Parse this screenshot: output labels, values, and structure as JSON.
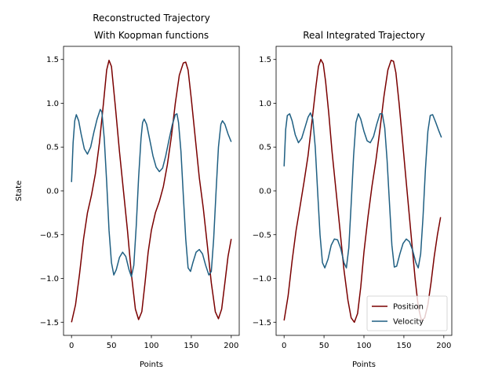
{
  "chart_data": [
    {
      "type": "line",
      "title_lines": [
        "Reconstructed Trajectory",
        "With Koopman functions"
      ],
      "xlabel": "Points",
      "ylabel": "State",
      "xlim": [
        -10,
        210
      ],
      "ylim": [
        -1.65,
        1.65
      ],
      "xticks": [
        0,
        50,
        100,
        150,
        200
      ],
      "yticks": [
        -1.5,
        -1.0,
        -0.5,
        0.0,
        0.5,
        1.0,
        1.5
      ],
      "ytick_labels": [
        "−1.5",
        "−1.0",
        "−0.5",
        "0.0",
        "0.5",
        "1.0",
        "1.5"
      ],
      "legend": null,
      "series": [
        {
          "name": "Position",
          "color": "#7a0000",
          "points": [
            [
              0,
              -1.5
            ],
            [
              5,
              -1.3
            ],
            [
              10,
              -0.95
            ],
            [
              15,
              -0.55
            ],
            [
              20,
              -0.25
            ],
            [
              25,
              -0.05
            ],
            [
              30,
              0.2
            ],
            [
              35,
              0.55
            ],
            [
              40,
              1.0
            ],
            [
              44,
              1.38
            ],
            [
              47,
              1.49
            ],
            [
              50,
              1.42
            ],
            [
              55,
              0.95
            ],
            [
              60,
              0.45
            ],
            [
              65,
              0.0
            ],
            [
              70,
              -0.45
            ],
            [
              75,
              -0.95
            ],
            [
              80,
              -1.35
            ],
            [
              84,
              -1.47
            ],
            [
              88,
              -1.38
            ],
            [
              92,
              -1.05
            ],
            [
              96,
              -0.7
            ],
            [
              100,
              -0.45
            ],
            [
              105,
              -0.25
            ],
            [
              110,
              -0.12
            ],
            [
              115,
              0.05
            ],
            [
              120,
              0.3
            ],
            [
              125,
              0.62
            ],
            [
              130,
              1.0
            ],
            [
              135,
              1.32
            ],
            [
              140,
              1.46
            ],
            [
              143,
              1.47
            ],
            [
              146,
              1.38
            ],
            [
              150,
              1.05
            ],
            [
              155,
              0.6
            ],
            [
              160,
              0.15
            ],
            [
              165,
              -0.2
            ],
            [
              170,
              -0.62
            ],
            [
              175,
              -1.05
            ],
            [
              180,
              -1.38
            ],
            [
              184,
              -1.46
            ],
            [
              188,
              -1.35
            ],
            [
              192,
              -1.05
            ],
            [
              196,
              -0.75
            ],
            [
              200,
              -0.55
            ]
          ]
        },
        {
          "name": "Velocity",
          "color": "#1f5f82",
          "points": [
            [
              0,
              0.1
            ],
            [
              2,
              0.55
            ],
            [
              4,
              0.8
            ],
            [
              6,
              0.87
            ],
            [
              9,
              0.8
            ],
            [
              12,
              0.65
            ],
            [
              16,
              0.48
            ],
            [
              20,
              0.42
            ],
            [
              24,
              0.5
            ],
            [
              28,
              0.67
            ],
            [
              32,
              0.82
            ],
            [
              36,
              0.93
            ],
            [
              38,
              0.9
            ],
            [
              41,
              0.6
            ],
            [
              44,
              0.1
            ],
            [
              47,
              -0.45
            ],
            [
              50,
              -0.82
            ],
            [
              53,
              -0.96
            ],
            [
              56,
              -0.9
            ],
            [
              60,
              -0.76
            ],
            [
              64,
              -0.7
            ],
            [
              68,
              -0.75
            ],
            [
              72,
              -0.9
            ],
            [
              75,
              -0.98
            ],
            [
              78,
              -0.85
            ],
            [
              81,
              -0.4
            ],
            [
              84,
              0.15
            ],
            [
              87,
              0.6
            ],
            [
              89,
              0.78
            ],
            [
              91,
              0.82
            ],
            [
              94,
              0.76
            ],
            [
              98,
              0.58
            ],
            [
              102,
              0.4
            ],
            [
              106,
              0.27
            ],
            [
              110,
              0.22
            ],
            [
              114,
              0.26
            ],
            [
              118,
              0.4
            ],
            [
              122,
              0.58
            ],
            [
              126,
              0.75
            ],
            [
              130,
              0.87
            ],
            [
              132,
              0.88
            ],
            [
              134,
              0.78
            ],
            [
              137,
              0.45
            ],
            [
              140,
              -0.05
            ],
            [
              143,
              -0.55
            ],
            [
              146,
              -0.88
            ],
            [
              149,
              -0.92
            ],
            [
              152,
              -0.82
            ],
            [
              156,
              -0.7
            ],
            [
              160,
              -0.67
            ],
            [
              164,
              -0.72
            ],
            [
              168,
              -0.85
            ],
            [
              172,
              -0.96
            ],
            [
              175,
              -0.92
            ],
            [
              178,
              -0.55
            ],
            [
              181,
              0.0
            ],
            [
              184,
              0.5
            ],
            [
              187,
              0.76
            ],
            [
              189,
              0.8
            ],
            [
              192,
              0.76
            ],
            [
              196,
              0.65
            ],
            [
              200,
              0.56
            ]
          ]
        }
      ]
    },
    {
      "type": "line",
      "title_lines": [
        "Real Integrated Trajectory"
      ],
      "xlabel": "Points",
      "ylabel": "",
      "xlim": [
        -10,
        210
      ],
      "ylim": [
        -1.65,
        1.65
      ],
      "xticks": [
        0,
        50,
        100,
        150,
        200
      ],
      "yticks": [
        -1.5,
        -1.0,
        -0.5,
        0.0,
        0.5,
        1.0,
        1.5
      ],
      "ytick_labels": [
        "−1.5",
        "−1.0",
        "−0.5",
        "0.0",
        "0.5",
        "1.0",
        "1.5"
      ],
      "legend": "lower right",
      "series": [
        {
          "name": "Position",
          "color": "#7a0000",
          "points": [
            [
              0,
              -1.48
            ],
            [
              5,
              -1.2
            ],
            [
              10,
              -0.8
            ],
            [
              15,
              -0.45
            ],
            [
              20,
              -0.18
            ],
            [
              25,
              0.1
            ],
            [
              30,
              0.4
            ],
            [
              35,
              0.8
            ],
            [
              40,
              1.2
            ],
            [
              43,
              1.42
            ],
            [
              46,
              1.5
            ],
            [
              49,
              1.45
            ],
            [
              52,
              1.25
            ],
            [
              56,
              0.88
            ],
            [
              60,
              0.45
            ],
            [
              65,
              0.0
            ],
            [
              70,
              -0.45
            ],
            [
              75,
              -0.9
            ],
            [
              80,
              -1.25
            ],
            [
              84,
              -1.45
            ],
            [
              88,
              -1.5
            ],
            [
              92,
              -1.4
            ],
            [
              96,
              -1.1
            ],
            [
              100,
              -0.7
            ],
            [
              105,
              -0.3
            ],
            [
              110,
              0.05
            ],
            [
              115,
              0.35
            ],
            [
              120,
              0.7
            ],
            [
              125,
              1.08
            ],
            [
              130,
              1.38
            ],
            [
              134,
              1.49
            ],
            [
              137,
              1.48
            ],
            [
              140,
              1.35
            ],
            [
              144,
              1.0
            ],
            [
              148,
              0.6
            ],
            [
              152,
              0.2
            ],
            [
              156,
              -0.2
            ],
            [
              160,
              -0.6
            ],
            [
              164,
              -1.0
            ],
            [
              168,
              -1.32
            ],
            [
              172,
              -1.48
            ],
            [
              176,
              -1.45
            ],
            [
              180,
              -1.3
            ],
            [
              184,
              -1.05
            ],
            [
              188,
              -0.75
            ],
            [
              192,
              -0.5
            ],
            [
              196,
              -0.3
            ]
          ]
        },
        {
          "name": "Velocity",
          "color": "#1f5f82",
          "points": [
            [
              0,
              0.28
            ],
            [
              2,
              0.7
            ],
            [
              4,
              0.86
            ],
            [
              7,
              0.88
            ],
            [
              10,
              0.8
            ],
            [
              14,
              0.64
            ],
            [
              18,
              0.55
            ],
            [
              22,
              0.6
            ],
            [
              26,
              0.72
            ],
            [
              30,
              0.84
            ],
            [
              33,
              0.89
            ],
            [
              36,
              0.82
            ],
            [
              39,
              0.5
            ],
            [
              42,
              0.0
            ],
            [
              45,
              -0.5
            ],
            [
              48,
              -0.82
            ],
            [
              51,
              -0.88
            ],
            [
              55,
              -0.78
            ],
            [
              59,
              -0.62
            ],
            [
              63,
              -0.55
            ],
            [
              67,
              -0.56
            ],
            [
              71,
              -0.66
            ],
            [
              75,
              -0.82
            ],
            [
              78,
              -0.88
            ],
            [
              81,
              -0.65
            ],
            [
              84,
              -0.15
            ],
            [
              87,
              0.4
            ],
            [
              90,
              0.78
            ],
            [
              93,
              0.88
            ],
            [
              96,
              0.82
            ],
            [
              100,
              0.68
            ],
            [
              104,
              0.57
            ],
            [
              108,
              0.55
            ],
            [
              112,
              0.62
            ],
            [
              116,
              0.76
            ],
            [
              120,
              0.88
            ],
            [
              123,
              0.88
            ],
            [
              126,
              0.72
            ],
            [
              129,
              0.35
            ],
            [
              132,
              -0.15
            ],
            [
              135,
              -0.62
            ],
            [
              138,
              -0.87
            ],
            [
              141,
              -0.86
            ],
            [
              145,
              -0.72
            ],
            [
              149,
              -0.6
            ],
            [
              153,
              -0.55
            ],
            [
              157,
              -0.58
            ],
            [
              161,
              -0.68
            ],
            [
              165,
              -0.82
            ],
            [
              168,
              -0.88
            ],
            [
              171,
              -0.72
            ],
            [
              174,
              -0.3
            ],
            [
              177,
              0.25
            ],
            [
              180,
              0.68
            ],
            [
              183,
              0.86
            ],
            [
              186,
              0.87
            ],
            [
              190,
              0.78
            ],
            [
              194,
              0.68
            ],
            [
              197,
              0.61
            ]
          ]
        }
      ]
    }
  ]
}
